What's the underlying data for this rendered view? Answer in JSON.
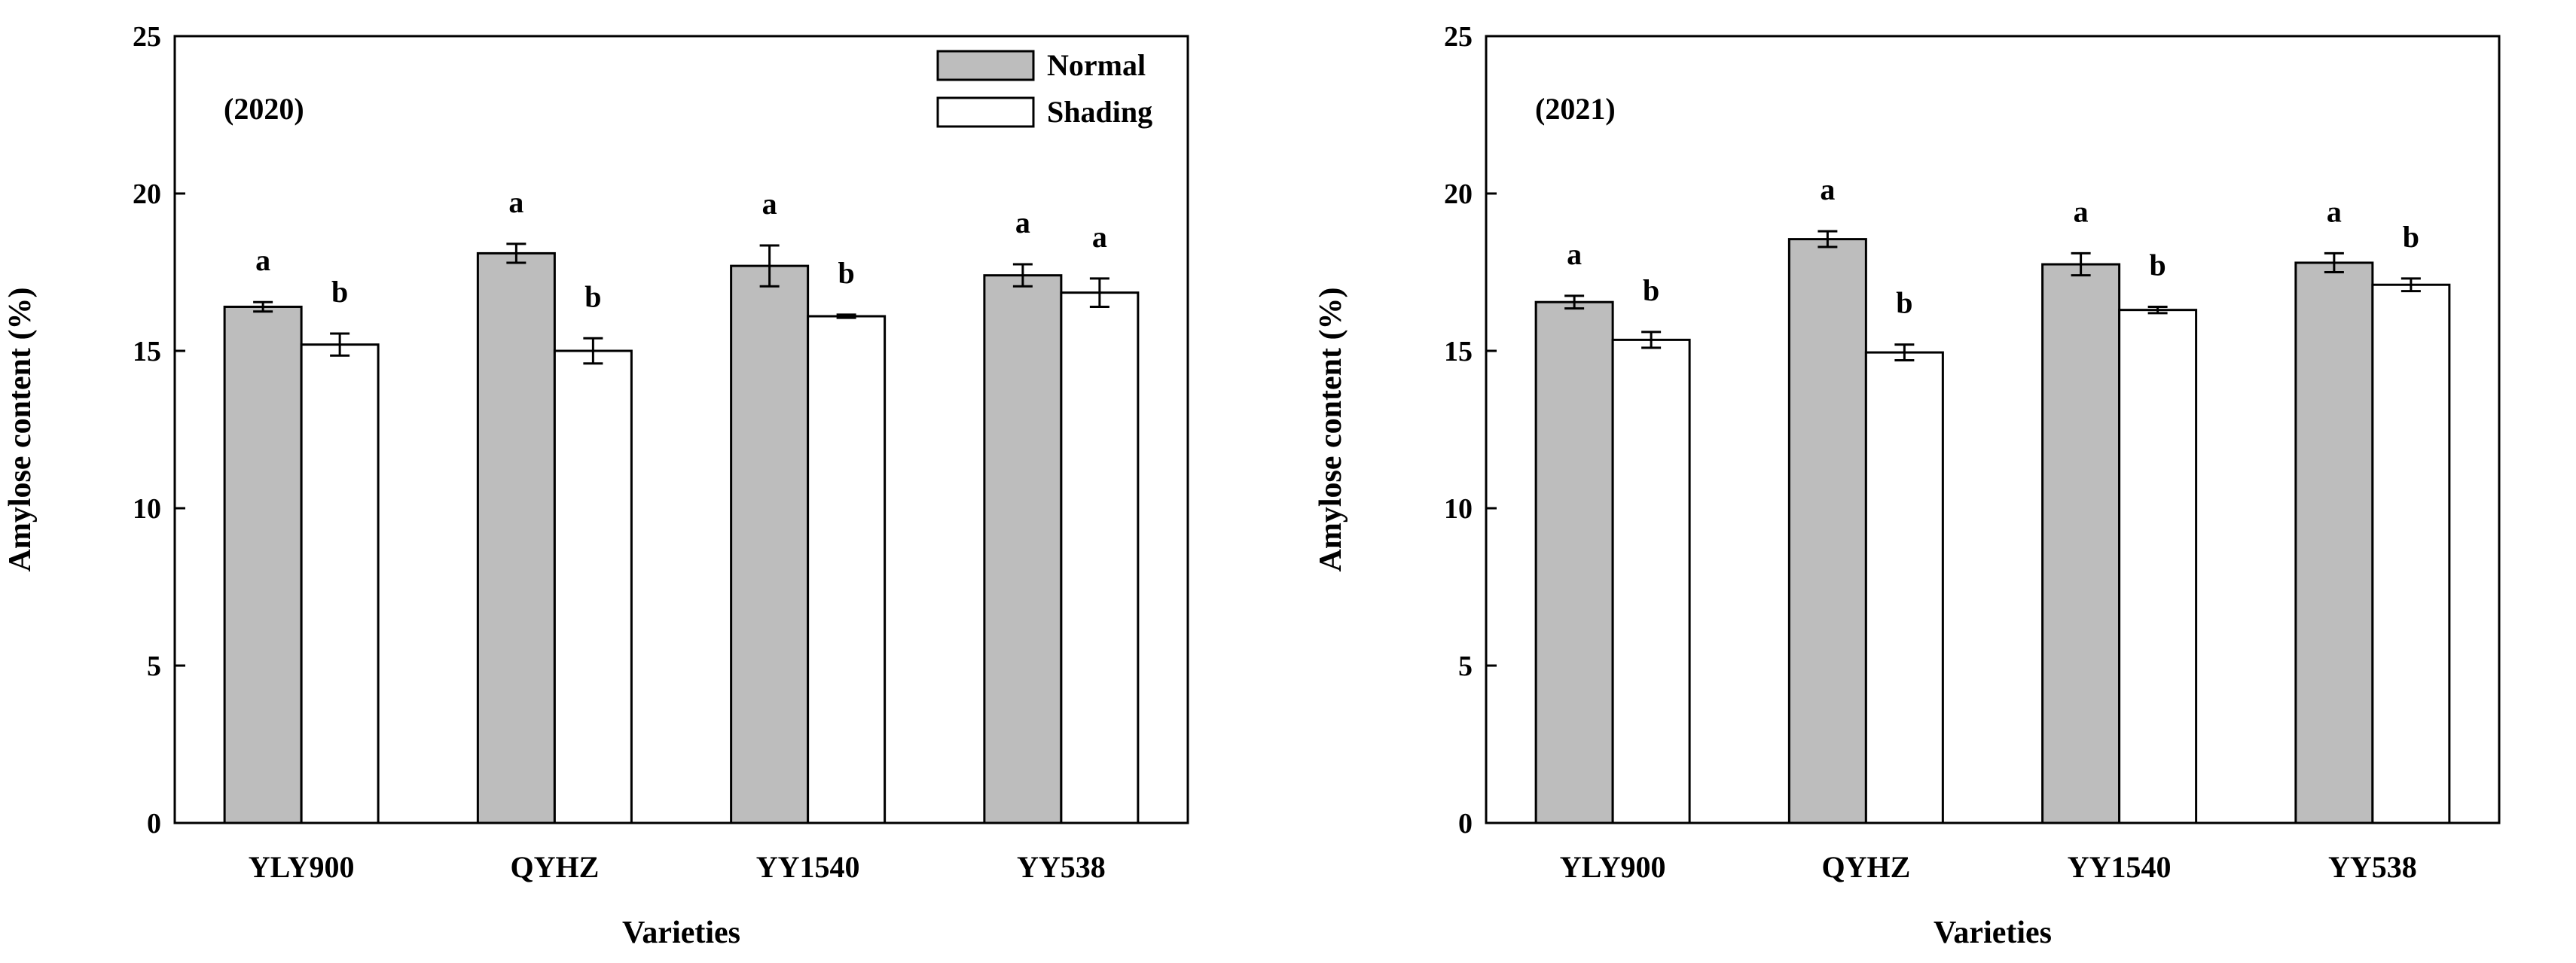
{
  "chart_data": [
    {
      "type": "bar",
      "panel_label": "(2020)",
      "categories": [
        "YLY900",
        "QYHZ",
        "YY1540",
        "YY538"
      ],
      "series": [
        {
          "name": "Normal",
          "color": "#bdbdbd",
          "values": [
            16.4,
            18.1,
            17.7,
            17.4
          ],
          "errors": [
            0.15,
            0.3,
            0.65,
            0.35
          ],
          "letters": [
            "a",
            "a",
            "a",
            "a"
          ]
        },
        {
          "name": "Shading",
          "color": "#ffffff",
          "values": [
            15.2,
            15.0,
            16.1,
            16.85
          ],
          "errors": [
            0.35,
            0.4,
            0.05,
            0.45
          ],
          "letters": [
            "b",
            "b",
            "b",
            "a"
          ]
        }
      ],
      "xlabel": "Varieties",
      "ylabel": "Amylose content (%)",
      "ylim": [
        0,
        25
      ],
      "yticks": [
        "0",
        "5",
        "10",
        "15",
        "20",
        "25"
      ],
      "legend": "top-right",
      "grid": false
    },
    {
      "type": "bar",
      "panel_label": "(2021)",
      "categories": [
        "YLY900",
        "QYHZ",
        "YY1540",
        "YY538"
      ],
      "series": [
        {
          "name": "Normal",
          "color": "#bdbdbd",
          "values": [
            16.55,
            18.55,
            17.75,
            17.8
          ],
          "errors": [
            0.2,
            0.25,
            0.35,
            0.3
          ],
          "letters": [
            "a",
            "a",
            "a",
            "a"
          ]
        },
        {
          "name": "Shading",
          "color": "#ffffff",
          "values": [
            15.35,
            14.95,
            16.3,
            17.1
          ],
          "errors": [
            0.25,
            0.25,
            0.1,
            0.2
          ],
          "letters": [
            "b",
            "b",
            "b",
            "b"
          ]
        }
      ],
      "xlabel": "Varieties",
      "ylabel": "Amylose content (%)",
      "ylim": [
        0,
        25
      ],
      "yticks": [
        "0",
        "5",
        "10",
        "15",
        "20",
        "25"
      ],
      "legend": "none",
      "grid": false
    }
  ]
}
